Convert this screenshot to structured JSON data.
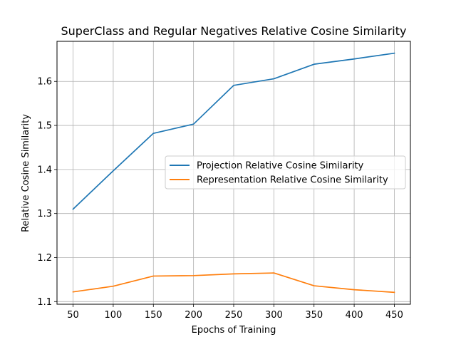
{
  "chart_data": {
    "type": "line",
    "title": "SuperClass and Regular Negatives Relative Cosine Similarity",
    "xlabel": "Epochs of Training",
    "ylabel": "Relative Cosine Similarity",
    "x": [
      50,
      100,
      150,
      200,
      250,
      300,
      350,
      400,
      450
    ],
    "xticks": [
      50,
      100,
      150,
      200,
      250,
      300,
      350,
      400,
      450
    ],
    "yticks": [
      1.1,
      1.2,
      1.3,
      1.4,
      1.5,
      1.6
    ],
    "ytick_labels": [
      "1.1",
      "1.2",
      "1.3",
      "1.4",
      "1.5",
      "1.6"
    ],
    "xlim": [
      30,
      470
    ],
    "ylim": [
      1.094,
      1.691
    ],
    "grid": true,
    "legend_position": "center-right",
    "series": [
      {
        "name": "Projection Relative Cosine Similarity",
        "color": "#1f77b4",
        "values": [
          1.31,
          1.397,
          1.482,
          1.503,
          1.591,
          1.606,
          1.639,
          1.651,
          1.664
        ]
      },
      {
        "name": "Representation Relative Cosine Similarity",
        "color": "#ff7f0e",
        "values": [
          1.122,
          1.135,
          1.158,
          1.159,
          1.163,
          1.165,
          1.136,
          1.127,
          1.121
        ]
      }
    ]
  }
}
